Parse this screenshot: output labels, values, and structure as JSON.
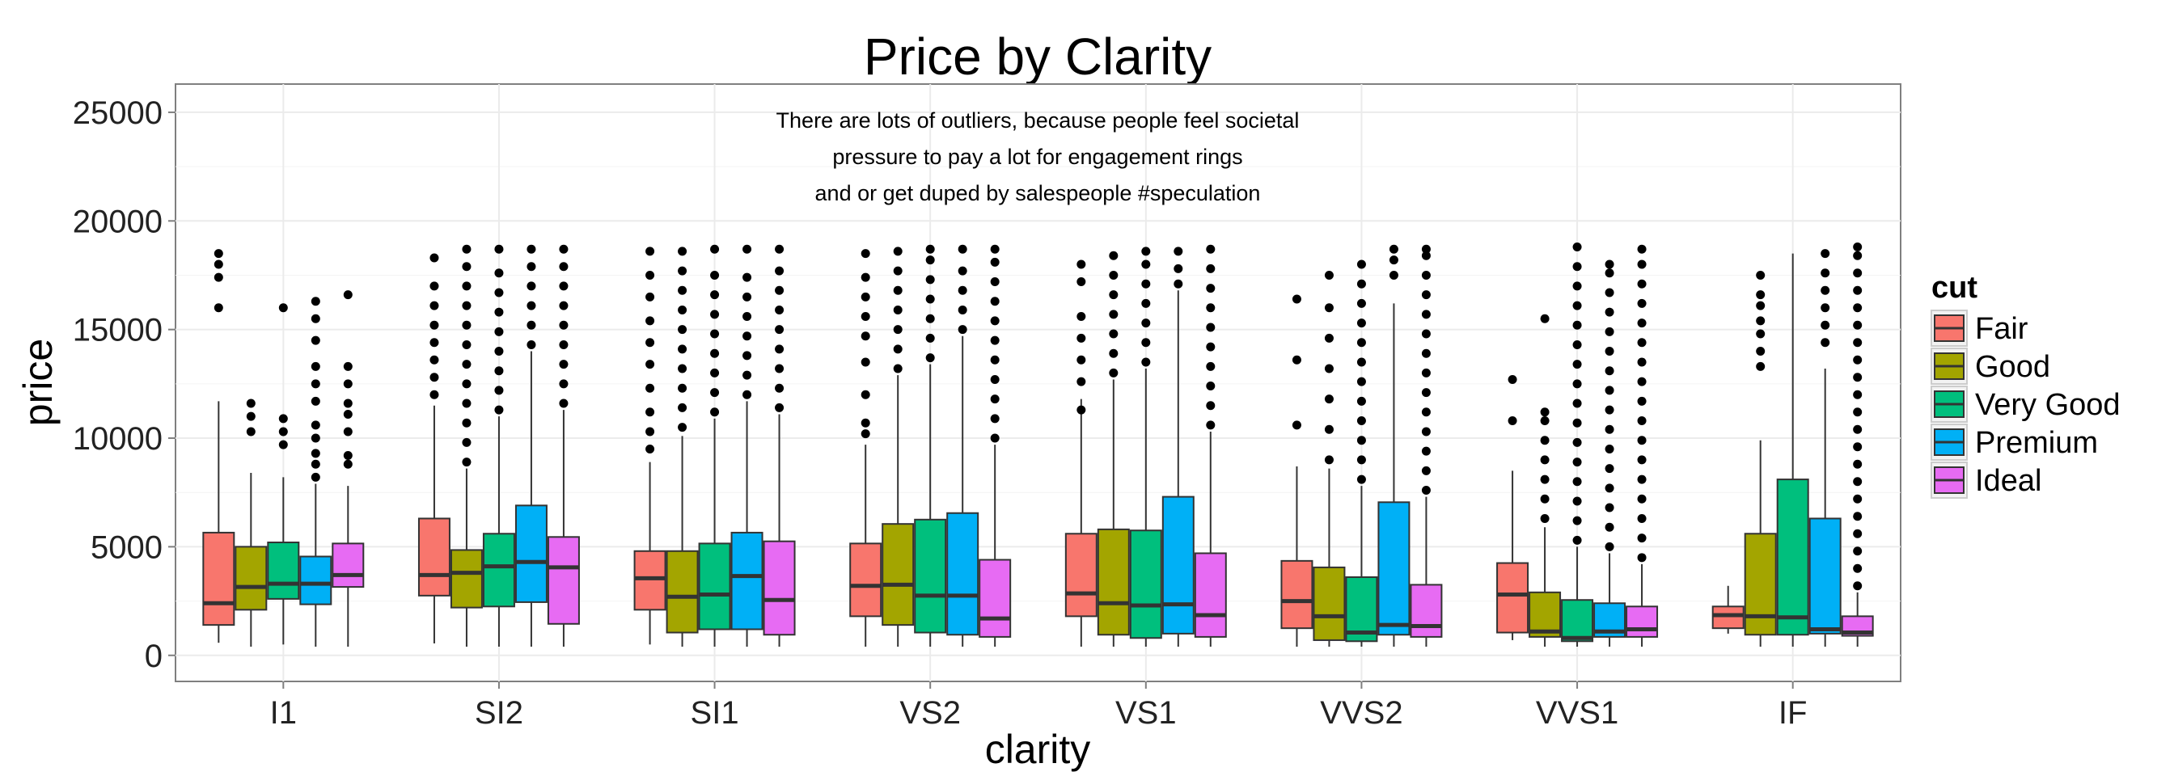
{
  "chart_data": {
    "type": "boxplot",
    "title": "Price by Clarity",
    "xlabel": "clarity",
    "ylabel": "price",
    "ylim": [
      -1200,
      26300
    ],
    "yticks": [
      0,
      5000,
      10000,
      15000,
      20000,
      25000
    ],
    "grid": true,
    "legend_title": "cut",
    "legend_position": "right",
    "annotation": [
      "There are lots of outliers, because people feel societal",
      "pressure to pay a lot for engagement rings",
      "and or get duped by salespeople #speculation"
    ],
    "categories": [
      "I1",
      "SI2",
      "SI1",
      "VS2",
      "VS1",
      "VVS2",
      "VVS1",
      "IF"
    ],
    "series": [
      {
        "name": "Fair",
        "color": "#F8766D",
        "boxes": [
          {
            "lower": 580,
            "q1": 1400,
            "median": 2400,
            "q3": 5650,
            "upper": 11700,
            "outliers": [
              16000,
              17400,
              18000,
              18500
            ]
          },
          {
            "lower": 550,
            "q1": 2750,
            "median": 3700,
            "q3": 6300,
            "upper": 11500,
            "outliers": [
              12000,
              12800,
              13600,
              14400,
              15200,
              16100,
              17000,
              18300
            ]
          },
          {
            "lower": 500,
            "q1": 2100,
            "median": 3550,
            "q3": 4800,
            "upper": 8900,
            "outliers": [
              9500,
              10300,
              11200,
              12300,
              13400,
              14400,
              15400,
              16500,
              17500,
              18600
            ]
          },
          {
            "lower": 400,
            "q1": 1800,
            "median": 3200,
            "q3": 5150,
            "upper": 9700,
            "outliers": [
              10200,
              10700,
              12000,
              13500,
              14700,
              15600,
              16500,
              17400,
              18500
            ]
          },
          {
            "lower": 400,
            "q1": 1800,
            "median": 2850,
            "q3": 5600,
            "upper": 11800,
            "outliers": [
              11300,
              12600,
              13600,
              14600,
              15600,
              17200,
              18000
            ]
          },
          {
            "lower": 400,
            "q1": 1250,
            "median": 2500,
            "q3": 4350,
            "upper": 8700,
            "outliers": [
              10600,
              13600,
              16400
            ]
          },
          {
            "lower": 700,
            "q1": 1050,
            "median": 2800,
            "q3": 4250,
            "upper": 8500,
            "outliers": [
              10800,
              12700
            ]
          },
          {
            "lower": 1000,
            "q1": 1250,
            "median": 1850,
            "q3": 2250,
            "upper": 3200,
            "outliers": []
          }
        ]
      },
      {
        "name": "Good",
        "color": "#A3A500",
        "boxes": [
          {
            "lower": 400,
            "q1": 2100,
            "median": 3150,
            "q3": 5000,
            "upper": 8400,
            "outliers": [
              10300,
              11000,
              11600
            ]
          },
          {
            "lower": 400,
            "q1": 2200,
            "median": 3800,
            "q3": 4850,
            "upper": 8600,
            "outliers": [
              8900,
              9800,
              10700,
              11600,
              12500,
              13400,
              14300,
              15200,
              16100,
              17000,
              17900,
              18700
            ]
          },
          {
            "lower": 400,
            "q1": 1050,
            "median": 2700,
            "q3": 4800,
            "upper": 10100,
            "outliers": [
              10500,
              11400,
              12300,
              13200,
              14100,
              15000,
              15900,
              16800,
              17700,
              18600
            ]
          },
          {
            "lower": 400,
            "q1": 1400,
            "median": 3250,
            "q3": 6050,
            "upper": 12900,
            "outliers": [
              13200,
              14100,
              15000,
              15900,
              16800,
              17700,
              18600
            ]
          },
          {
            "lower": 400,
            "q1": 950,
            "median": 2400,
            "q3": 5800,
            "upper": 12700,
            "outliers": [
              13000,
              13900,
              14800,
              15700,
              16600,
              17500,
              18400
            ]
          },
          {
            "lower": 400,
            "q1": 700,
            "median": 1800,
            "q3": 4050,
            "upper": 8600,
            "outliers": [
              9000,
              10400,
              11800,
              13200,
              14600,
              16000,
              17500
            ]
          },
          {
            "lower": 400,
            "q1": 850,
            "median": 1100,
            "q3": 2900,
            "upper": 5900,
            "outliers": [
              6300,
              7200,
              8100,
              9000,
              9900,
              10800,
              11200,
              15500
            ]
          },
          {
            "lower": 400,
            "q1": 950,
            "median": 1800,
            "q3": 5600,
            "upper": 9900,
            "outliers": [
              13300,
              14000,
              14800,
              15400,
              16100,
              16600,
              17500
            ]
          }
        ]
      },
      {
        "name": "Very Good",
        "color": "#00BF7D",
        "boxes": [
          {
            "lower": 500,
            "q1": 2600,
            "median": 3300,
            "q3": 5200,
            "upper": 8200,
            "outliers": [
              9700,
              10300,
              10900,
              16000
            ]
          },
          {
            "lower": 400,
            "q1": 2250,
            "median": 4100,
            "q3": 5600,
            "upper": 11000,
            "outliers": [
              11300,
              12200,
              13100,
              14000,
              14900,
              15800,
              16700,
              17600,
              18700
            ]
          },
          {
            "lower": 400,
            "q1": 1200,
            "median": 2800,
            "q3": 5150,
            "upper": 10900,
            "outliers": [
              11200,
              12100,
              13000,
              13900,
              14800,
              15700,
              16600,
              17500,
              18700
            ]
          },
          {
            "lower": 400,
            "q1": 1050,
            "median": 2750,
            "q3": 6250,
            "upper": 13400,
            "outliers": [
              13700,
              14600,
              15500,
              16400,
              17300,
              18200,
              18700
            ]
          },
          {
            "lower": 400,
            "q1": 800,
            "median": 2300,
            "q3": 5750,
            "upper": 13200,
            "outliers": [
              13500,
              14400,
              15300,
              16200,
              17100,
              18000,
              18600
            ]
          },
          {
            "lower": 400,
            "q1": 650,
            "median": 1050,
            "q3": 3600,
            "upper": 7800,
            "outliers": [
              8100,
              9000,
              9900,
              10800,
              11700,
              12600,
              13500,
              14400,
              15300,
              16200,
              17100,
              18000
            ]
          },
          {
            "lower": 400,
            "q1": 650,
            "median": 800,
            "q3": 2550,
            "upper": 5000,
            "outliers": [
              5300,
              6200,
              7100,
              8000,
              8900,
              9800,
              10700,
              11600,
              12500,
              13400,
              14300,
              15200,
              16100,
              17000,
              17900,
              18800
            ]
          },
          {
            "lower": 400,
            "q1": 950,
            "median": 1750,
            "q3": 8100,
            "upper": 18500,
            "outliers": []
          }
        ]
      },
      {
        "name": "Premium",
        "color": "#00B0F6",
        "boxes": [
          {
            "lower": 400,
            "q1": 2350,
            "median": 3300,
            "q3": 4550,
            "upper": 7900,
            "outliers": [
              8200,
              8800,
              9300,
              10000,
              10600,
              11700,
              12500,
              13300,
              14500,
              15500,
              16300
            ]
          },
          {
            "lower": 400,
            "q1": 2450,
            "median": 4300,
            "q3": 6900,
            "upper": 14000,
            "outliers": [
              14300,
              15200,
              16100,
              17000,
              17900,
              18700
            ]
          },
          {
            "lower": 400,
            "q1": 1200,
            "median": 3650,
            "q3": 5650,
            "upper": 11700,
            "outliers": [
              12000,
              12900,
              13800,
              14700,
              15600,
              16500,
              17400,
              18700
            ]
          },
          {
            "lower": 400,
            "q1": 950,
            "median": 2750,
            "q3": 6550,
            "upper": 14700,
            "outliers": [
              15000,
              15900,
              16800,
              17700,
              18700
            ]
          },
          {
            "lower": 400,
            "q1": 1000,
            "median": 2350,
            "q3": 7300,
            "upper": 16800,
            "outliers": [
              17100,
              17800,
              18600
            ]
          },
          {
            "lower": 400,
            "q1": 950,
            "median": 1400,
            "q3": 7050,
            "upper": 16200,
            "outliers": [
              17500,
              18200,
              18700
            ]
          },
          {
            "lower": 400,
            "q1": 850,
            "median": 1100,
            "q3": 2400,
            "upper": 4700,
            "outliers": [
              5000,
              5900,
              6800,
              7700,
              8600,
              9500,
              10400,
              11300,
              12200,
              13100,
              14000,
              14900,
              15800,
              16700,
              17600,
              18000
            ]
          },
          {
            "lower": 400,
            "q1": 1000,
            "median": 1200,
            "q3": 6300,
            "upper": 13200,
            "outliers": [
              14400,
              15200,
              16000,
              16800,
              17600,
              18500
            ]
          }
        ]
      },
      {
        "name": "Ideal",
        "color": "#E76BF3",
        "boxes": [
          {
            "lower": 400,
            "q1": 3150,
            "median": 3700,
            "q3": 5150,
            "upper": 7800,
            "outliers": [
              8800,
              9200,
              10300,
              11100,
              11600,
              12500,
              13300,
              16600
            ]
          },
          {
            "lower": 400,
            "q1": 1450,
            "median": 4050,
            "q3": 5450,
            "upper": 11300,
            "outliers": [
              11600,
              12500,
              13400,
              14300,
              15200,
              16100,
              17000,
              17900,
              18700
            ]
          },
          {
            "lower": 400,
            "q1": 950,
            "median": 2550,
            "q3": 5250,
            "upper": 11100,
            "outliers": [
              11400,
              12300,
              13200,
              14100,
              15000,
              15900,
              16800,
              17700,
              18700
            ]
          },
          {
            "lower": 400,
            "q1": 850,
            "median": 1700,
            "q3": 4400,
            "upper": 9700,
            "outliers": [
              10000,
              10900,
              11800,
              12700,
              13600,
              14500,
              15400,
              16300,
              17200,
              18100,
              18700
            ]
          },
          {
            "lower": 400,
            "q1": 850,
            "median": 1850,
            "q3": 4700,
            "upper": 10300,
            "outliers": [
              10600,
              11500,
              12400,
              13300,
              14200,
              15100,
              16000,
              16900,
              17800,
              18700
            ]
          },
          {
            "lower": 400,
            "q1": 850,
            "median": 1350,
            "q3": 3250,
            "upper": 7300,
            "outliers": [
              7600,
              8500,
              9400,
              10300,
              11200,
              12100,
              13000,
              13900,
              14800,
              15700,
              16600,
              17500,
              18400,
              18700
            ]
          },
          {
            "lower": 400,
            "q1": 850,
            "median": 1200,
            "q3": 2250,
            "upper": 4200,
            "outliers": [
              4500,
              5400,
              6300,
              7200,
              8100,
              9000,
              9900,
              10800,
              11700,
              12600,
              13500,
              14400,
              15300,
              16200,
              17100,
              18000,
              18700
            ]
          },
          {
            "lower": 400,
            "q1": 900,
            "median": 1050,
            "q3": 1800,
            "upper": 2900,
            "outliers": [
              3200,
              4000,
              4800,
              5600,
              6400,
              7200,
              8000,
              8800,
              9600,
              10400,
              11200,
              12000,
              12800,
              13600,
              14400,
              15200,
              16000,
              16800,
              17600,
              18400,
              18800
            ]
          }
        ]
      }
    ]
  }
}
